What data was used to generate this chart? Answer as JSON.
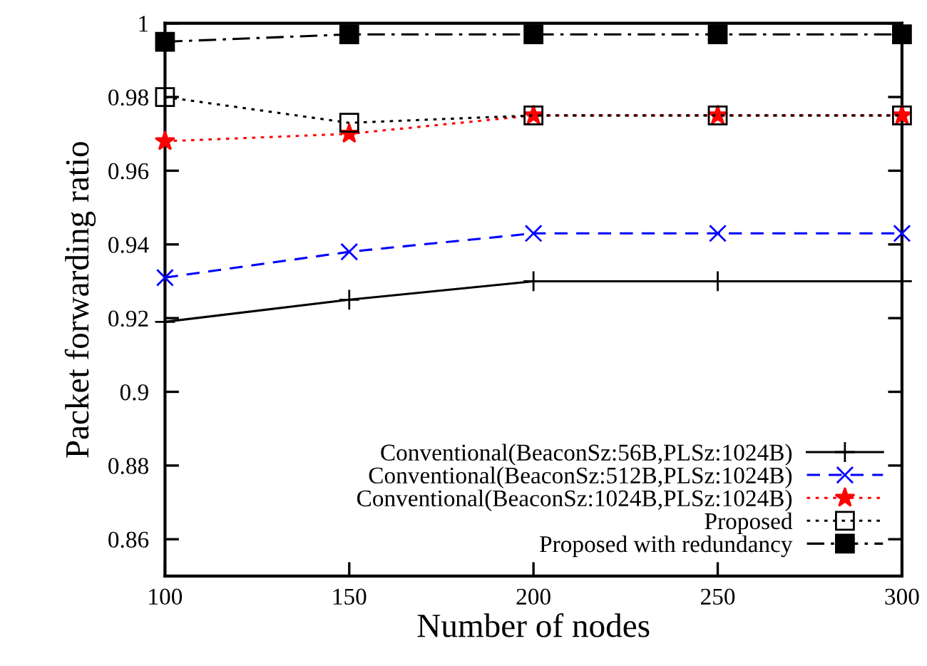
{
  "chart_data": {
    "type": "line",
    "xlabel": "Number of nodes",
    "ylabel": "Packet forwarding ratio",
    "x": [
      100,
      150,
      200,
      250,
      300
    ],
    "xlim": [
      100,
      300
    ],
    "xticks": [
      100,
      150,
      200,
      250,
      300
    ],
    "ylim": [
      0.85,
      1
    ],
    "yticks": [
      0.86,
      0.88,
      0.9,
      0.92,
      0.94,
      0.96,
      0.98,
      1
    ],
    "grid": false,
    "legend": "bottom right",
    "series": [
      {
        "name": "Conventional(BeaconSz:56B,PLSz:1024B)",
        "color": "#000000",
        "marker": "plus",
        "line_style": "solid",
        "values": [
          0.919,
          0.925,
          0.93,
          0.93,
          0.93
        ]
      },
      {
        "name": "Conventional(BeaconSz:512B,PLSz:1024B)",
        "color": "#0000ff",
        "marker": "cross",
        "line_style": "dashed",
        "values": [
          0.931,
          0.938,
          0.943,
          0.943,
          0.943
        ]
      },
      {
        "name": "Conventional(BeaconSz:1024B,PLSz:1024B)",
        "color": "#ff0000",
        "marker": "star",
        "line_style": "dotted",
        "values": [
          0.968,
          0.97,
          0.975,
          0.975,
          0.975
        ]
      },
      {
        "name": "Proposed",
        "color": "#000000",
        "marker": "square",
        "line_style": "dotted",
        "values": [
          0.98,
          0.973,
          0.975,
          0.975,
          0.975
        ]
      },
      {
        "name": "Proposed with redundancy",
        "color": "#000000",
        "marker": "square",
        "line_style": "dashdot",
        "values": [
          0.995,
          0.997,
          0.997,
          0.997,
          0.997
        ]
      }
    ]
  }
}
